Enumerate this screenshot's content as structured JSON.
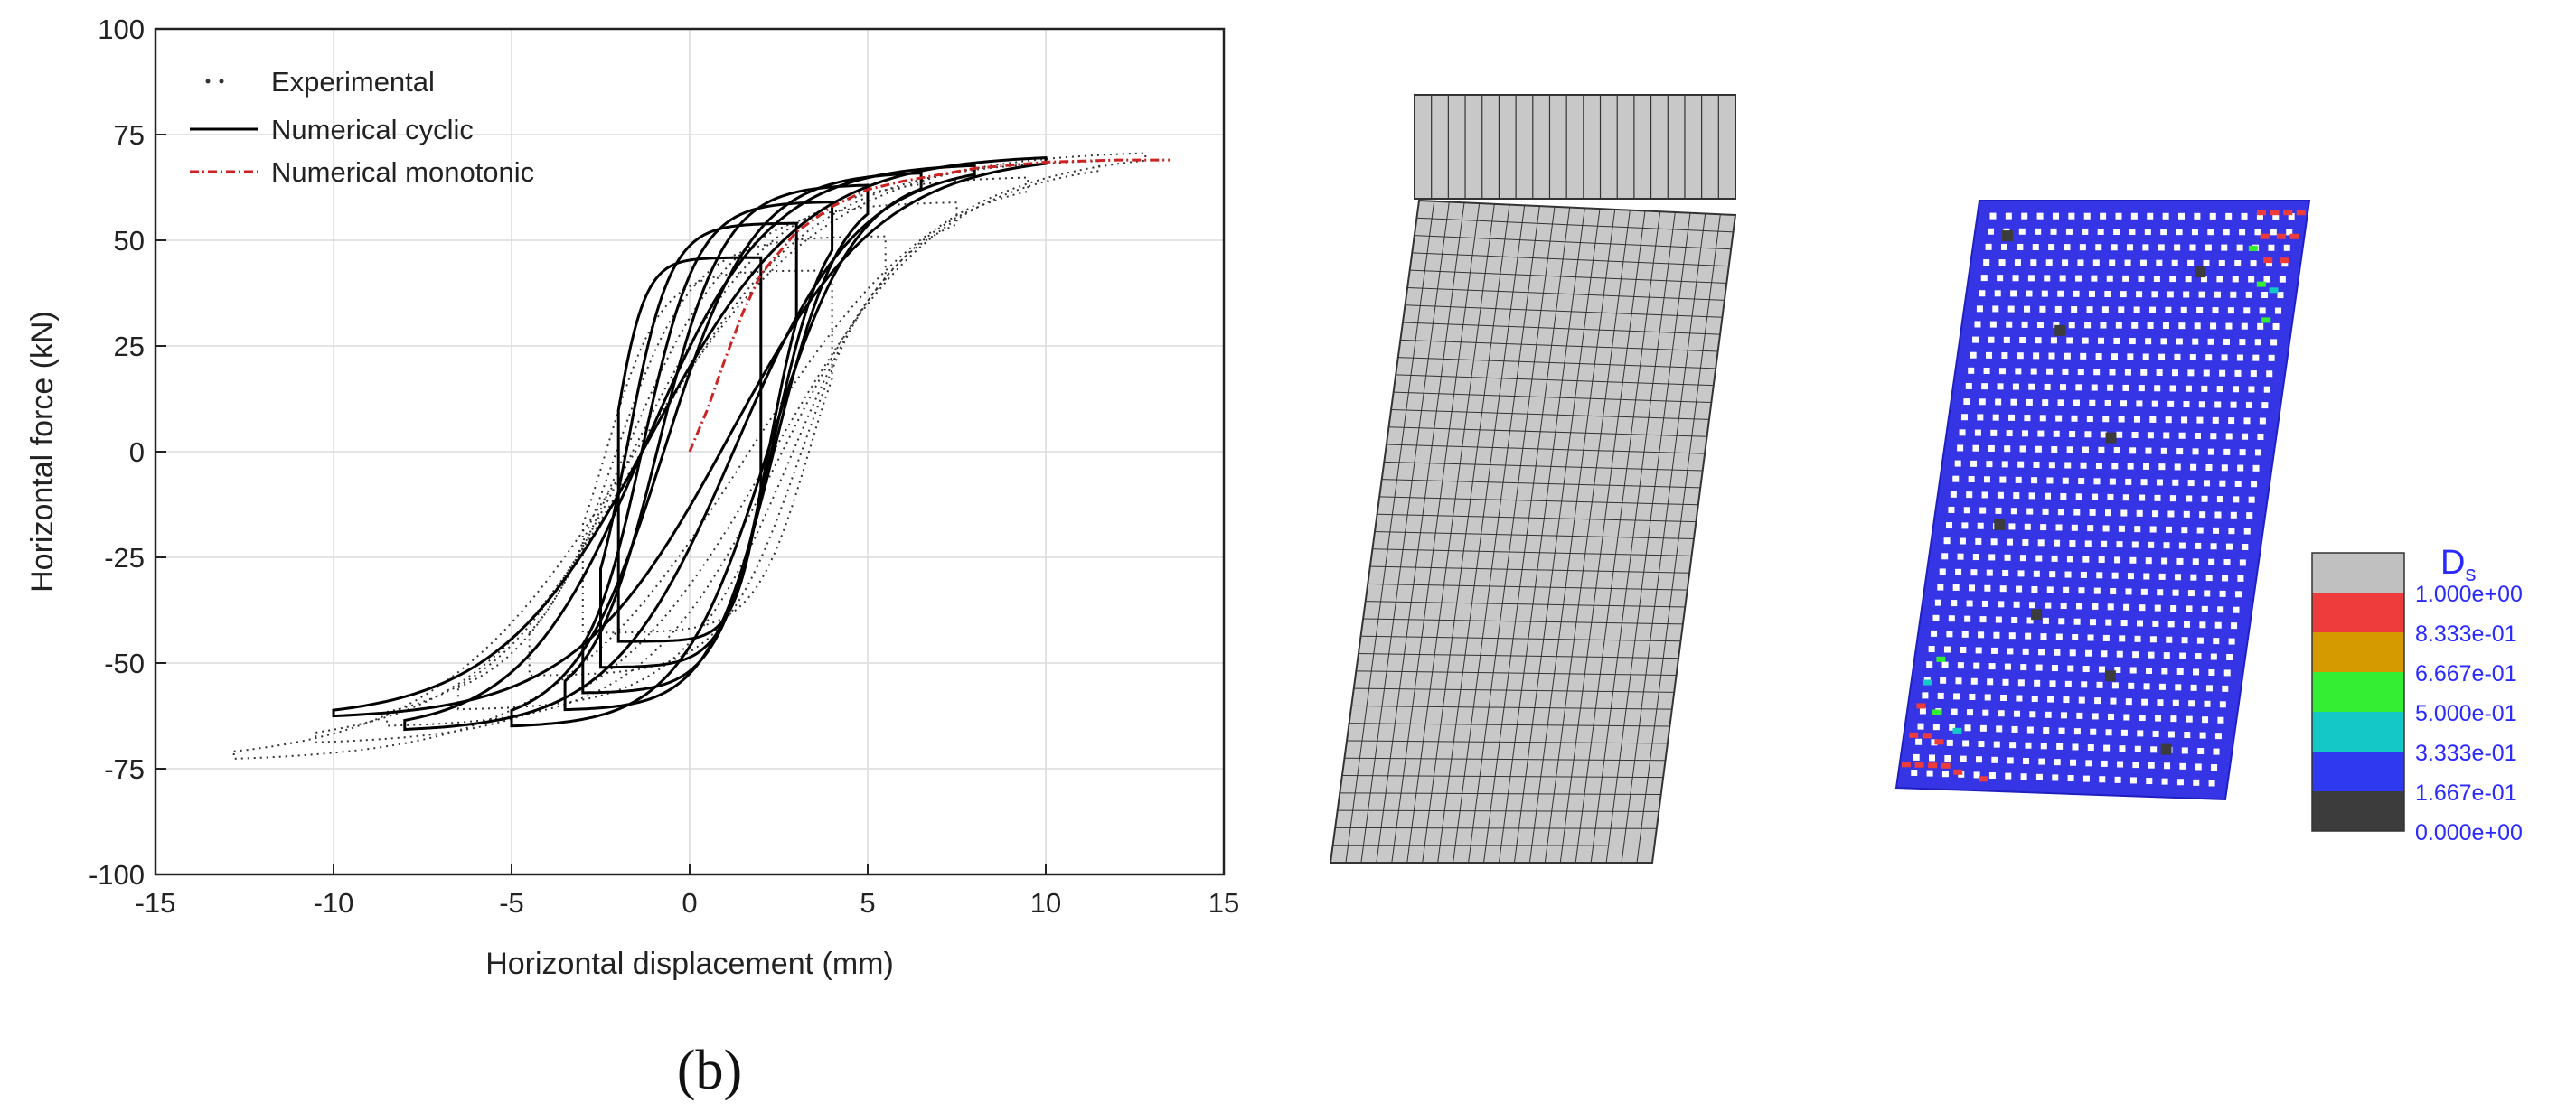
{
  "figure_label": "(b)",
  "chart_data": {
    "type": "line",
    "xlabel": "Horizontal displacement (mm)",
    "ylabel": "Horizontal force (kN)",
    "xlim": [
      -15,
      15
    ],
    "ylim": [
      -100,
      100
    ],
    "xticks": [
      -15,
      -10,
      -5,
      0,
      5,
      10,
      15
    ],
    "yticks": [
      -100,
      -75,
      -50,
      -25,
      0,
      25,
      50,
      75,
      100
    ],
    "xtick_labels": [
      "-15",
      "-10",
      "-5",
      "0",
      "5",
      "10",
      "15"
    ],
    "ytick_labels": [
      "-100",
      "-75",
      "-50",
      "-25",
      "0",
      "25",
      "50",
      "75",
      "100"
    ],
    "grid": true,
    "legend_position": "top-left",
    "series": [
      {
        "name": "Experimental",
        "style": "dotted",
        "color": "#333333",
        "loops": [
          {
            "amp_pos": 12.8,
            "f_pos": 70,
            "amp_neg": -12.8,
            "f_neg": -72
          },
          {
            "amp_pos": 11.5,
            "f_pos": 68,
            "amp_neg": -10.5,
            "f_neg": -68
          },
          {
            "amp_pos": 9.5,
            "f_pos": 64,
            "amp_neg": -8.5,
            "f_neg": -64
          },
          {
            "amp_pos": 7.5,
            "f_pos": 58,
            "amp_neg": -6.5,
            "f_neg": -60
          },
          {
            "amp_pos": 5.5,
            "f_pos": 50,
            "amp_neg": -4.5,
            "f_neg": -52
          },
          {
            "amp_pos": 4.0,
            "f_pos": 42,
            "amp_neg": -3.0,
            "f_neg": -42
          }
        ]
      },
      {
        "name": "Numerical cyclic",
        "style": "solid",
        "color": "#000000",
        "loops": [
          {
            "amp_pos": 10.0,
            "f_pos": 69,
            "amp_neg": -10.0,
            "f_neg": -62
          },
          {
            "amp_pos": 8.0,
            "f_pos": 67,
            "amp_neg": -8.0,
            "f_neg": -65
          },
          {
            "amp_pos": 6.5,
            "f_pos": 65,
            "amp_neg": -5.0,
            "f_neg": -64
          },
          {
            "amp_pos": 5.0,
            "f_pos": 62,
            "amp_neg": -3.5,
            "f_neg": -60
          },
          {
            "amp_pos": 4.0,
            "f_pos": 58,
            "amp_neg": -3.0,
            "f_neg": -56
          },
          {
            "amp_pos": 3.0,
            "f_pos": 53,
            "amp_neg": -2.5,
            "f_neg": -50
          },
          {
            "amp_pos": 2.0,
            "f_pos": 45,
            "amp_neg": -2.0,
            "f_neg": -44
          }
        ]
      },
      {
        "name": "Numerical monotonic",
        "style": "dash-dot",
        "color": "#cc2222",
        "x": [
          0,
          0.5,
          1,
          1.5,
          2,
          3,
          4,
          5,
          6,
          8,
          10,
          12,
          13.5
        ],
        "y": [
          0,
          10,
          22,
          33,
          42,
          52,
          58,
          62,
          64,
          67,
          68.5,
          69,
          69
        ]
      }
    ]
  },
  "mesh_panel": {
    "fill": "#c8c8c8",
    "stroke": "#333333",
    "top_beam_columns": 19,
    "wall_columns": 21,
    "wall_rows": 38
  },
  "damage_panel": {
    "wall_color": "#3535e6",
    "dot_color": "#ffffff",
    "legend_title": "D",
    "legend_subscript": "s",
    "legend_title_color": "#2a2aff",
    "legend_levels": [
      {
        "label": "1.000e+00",
        "color": "#c0c0c0"
      },
      {
        "label": "8.333e-01",
        "color": "#ee3b3b"
      },
      {
        "label": "6.667e-01",
        "color": "#d49a00"
      },
      {
        "label": "5.000e-01",
        "color": "#33ee33"
      },
      {
        "label": "3.333e-01",
        "color": "#14c8c8"
      },
      {
        "label": "1.667e-01",
        "color": "#2f39f0"
      },
      {
        "label": "0.000e+00",
        "color": "#3c3c3c"
      }
    ]
  }
}
